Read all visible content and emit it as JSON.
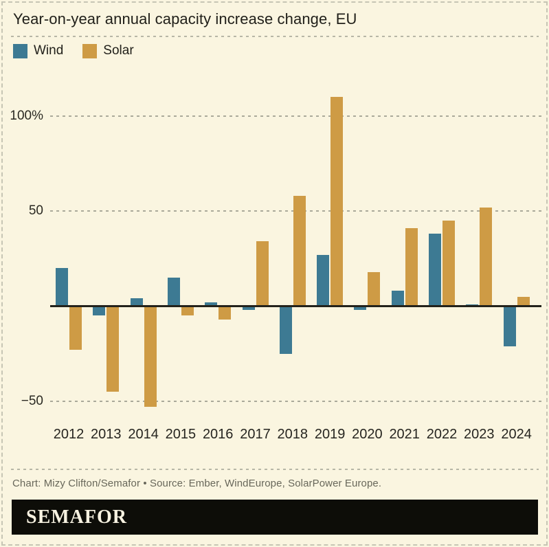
{
  "header": {
    "title": "Year-on-year annual capacity increase change, EU"
  },
  "chart_data": {
    "type": "bar",
    "title": "Year-on-year annual capacity increase change, EU",
    "categories": [
      "2012",
      "2013",
      "2014",
      "2015",
      "2016",
      "2017",
      "2018",
      "2019",
      "2020",
      "2021",
      "2022",
      "2023",
      "2024"
    ],
    "series": [
      {
        "name": "Wind",
        "color": "#3D7A93",
        "values": [
          20,
          -5,
          4,
          15,
          2,
          -2,
          -25,
          27,
          -2,
          8,
          38,
          1,
          -21
        ]
      },
      {
        "name": "Solar",
        "color": "#CE9B45",
        "values": [
          -23,
          -45,
          -53,
          -5,
          -7,
          34,
          58,
          110,
          18,
          41,
          45,
          52,
          5
        ]
      }
    ],
    "yticks": [
      {
        "label": "100%",
        "value": 100
      },
      {
        "label": "50",
        "value": 50
      },
      {
        "label": "−50",
        "value": -50
      }
    ],
    "ylim": [
      -60,
      115
    ],
    "unit": "percent",
    "grid": "horizontal-dashed",
    "legend_position": "top-left",
    "baseline": 0
  },
  "footer": {
    "credit": "Chart: Mizy Clifton/Semafor • Source: Ember, WindEurope, SolarPower Europe.",
    "logo": "SEMAFOR"
  }
}
